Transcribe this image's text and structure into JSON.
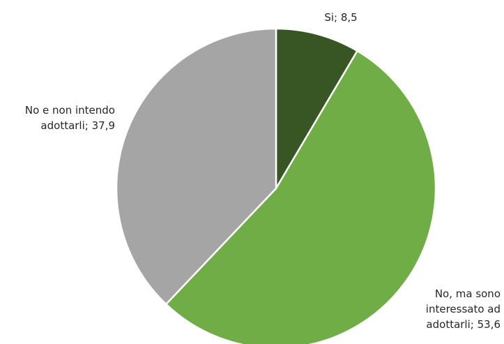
{
  "chart_data": {
    "type": "pie",
    "slices": [
      {
        "label_lines": [
          "Si; 8,5"
        ],
        "category": "Si",
        "value": 8.5,
        "color": "#375623"
      },
      {
        "label_lines": [
          "No, ma sono",
          "interessato ad",
          "adottarli; 53,6"
        ],
        "category": "No, ma sono interessato ad adottarli",
        "value": 53.6,
        "color": "#70ad47"
      },
      {
        "label_lines": [
          "No e non intendo",
          "adottarli; 37,9"
        ],
        "category": "No e non intendo adottarli",
        "value": 37.9,
        "color": "#a5a5a5"
      }
    ],
    "start_angle": "12 o'clock",
    "direction": "clockwise",
    "legend": "none",
    "slice_border_color": "#ffffff"
  }
}
